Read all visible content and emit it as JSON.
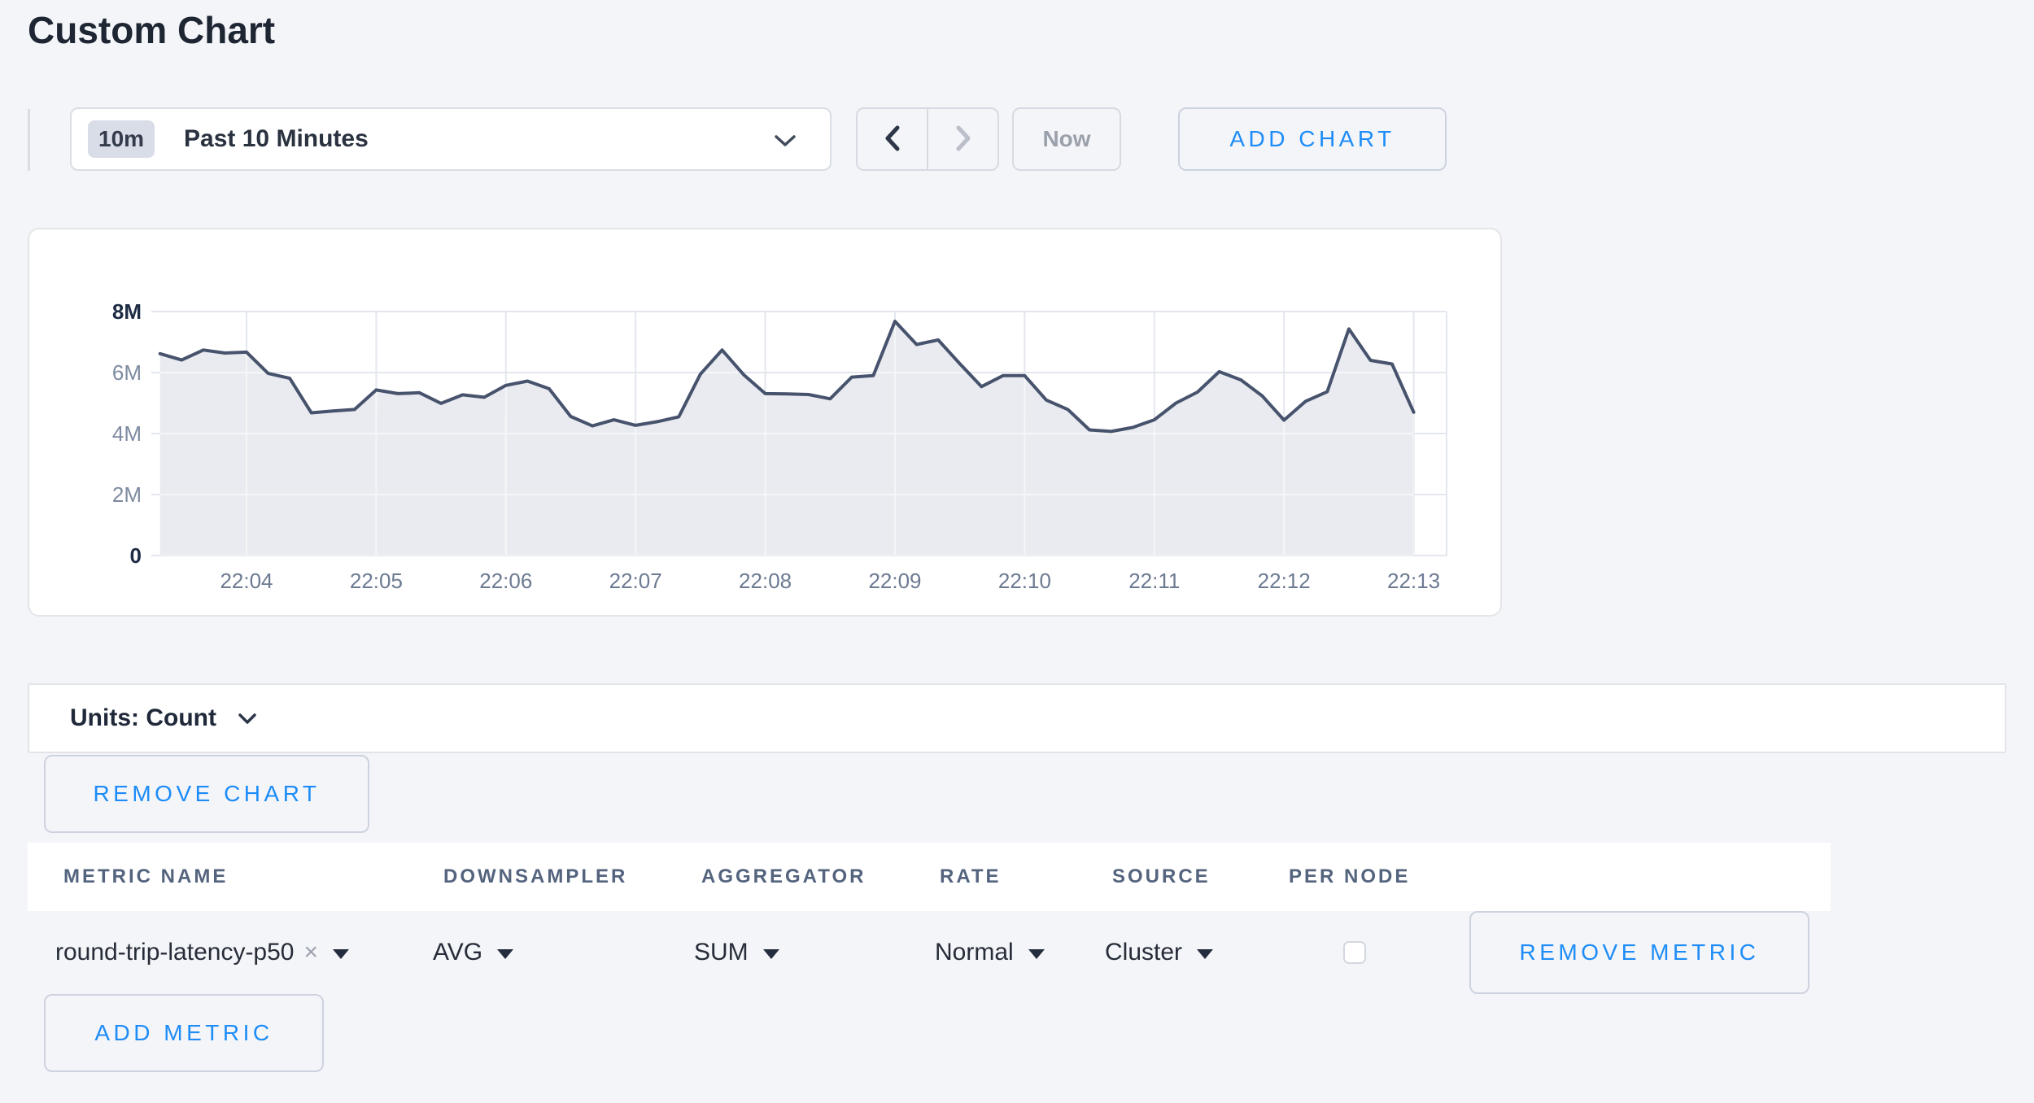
{
  "page": {
    "title": "Custom Chart",
    "background": "#f4f5f8",
    "accent_blue": "#1d8cf8"
  },
  "toolbar": {
    "time_window_badge": "10m",
    "time_window_label": "Past 10 Minutes",
    "now_label": "Now",
    "add_chart_label": "ADD CHART"
  },
  "icons": {
    "time_dropdown": "chevron-down-icon",
    "time_back": "chevron-left-icon",
    "time_forward": "chevron-right-icon",
    "units_dropdown": "chevron-down-icon",
    "select_caret": "caret-down-icon",
    "clear_metric": "close-icon"
  },
  "units_bar": {
    "label": "Units: Count"
  },
  "actions": {
    "remove_chart": "REMOVE CHART",
    "add_metric": "ADD METRIC"
  },
  "chart_data": {
    "type": "area",
    "title": "",
    "legend": "none",
    "grid": true,
    "line_color": "#47536d",
    "fill_color": "#e9ebf0",
    "grid_color": "#e4e7ee",
    "ylim": [
      0,
      8000000
    ],
    "yticks": [
      {
        "value": 0,
        "label": "0",
        "emphasis": true
      },
      {
        "value": 2000000,
        "label": "2M",
        "emphasis": false
      },
      {
        "value": 4000000,
        "label": "4M",
        "emphasis": false
      },
      {
        "value": 6000000,
        "label": "6M",
        "emphasis": false
      },
      {
        "value": 8000000,
        "label": "8M",
        "emphasis": true
      }
    ],
    "xticks": [
      {
        "time": "22:04:00",
        "label": "22:04"
      },
      {
        "time": "22:05:00",
        "label": "22:05"
      },
      {
        "time": "22:06:00",
        "label": "22:06"
      },
      {
        "time": "22:07:00",
        "label": "22:07"
      },
      {
        "time": "22:08:00",
        "label": "22:08"
      },
      {
        "time": "22:09:00",
        "label": "22:09"
      },
      {
        "time": "22:10:00",
        "label": "22:10"
      },
      {
        "time": "22:11:00",
        "label": "22:11"
      },
      {
        "time": "22:12:00",
        "label": "22:12"
      },
      {
        "time": "22:13:00",
        "label": "22:13"
      }
    ],
    "x": [
      "22:03:20",
      "22:03:30",
      "22:03:40",
      "22:03:50",
      "22:04:00",
      "22:04:10",
      "22:04:20",
      "22:04:30",
      "22:04:40",
      "22:04:50",
      "22:05:00",
      "22:05:10",
      "22:05:20",
      "22:05:30",
      "22:05:40",
      "22:05:50",
      "22:06:00",
      "22:06:10",
      "22:06:20",
      "22:06:30",
      "22:06:40",
      "22:06:50",
      "22:07:00",
      "22:07:10",
      "22:07:20",
      "22:07:30",
      "22:07:40",
      "22:07:50",
      "22:08:00",
      "22:08:10",
      "22:08:20",
      "22:08:30",
      "22:08:40",
      "22:08:50",
      "22:09:00",
      "22:09:10",
      "22:09:20",
      "22:09:30",
      "22:09:40",
      "22:09:50",
      "22:10:00",
      "22:10:10",
      "22:10:20",
      "22:10:30",
      "22:10:40",
      "22:10:50",
      "22:11:00",
      "22:11:10",
      "22:11:20",
      "22:11:30",
      "22:11:40",
      "22:11:50",
      "22:12:00",
      "22:12:10",
      "22:12:20",
      "22:12:30",
      "22:12:40",
      "22:12:50",
      "22:13:00"
    ],
    "values": [
      6620000,
      6410000,
      6740000,
      6640000,
      6670000,
      5970000,
      5810000,
      4680000,
      4740000,
      4790000,
      5430000,
      5310000,
      5340000,
      4990000,
      5270000,
      5190000,
      5580000,
      5720000,
      5470000,
      4560000,
      4250000,
      4450000,
      4270000,
      4390000,
      4550000,
      5950000,
      6740000,
      5930000,
      5310000,
      5300000,
      5280000,
      5140000,
      5850000,
      5900000,
      7680000,
      6920000,
      7070000,
      6290000,
      5540000,
      5900000,
      5900000,
      5100000,
      4790000,
      4120000,
      4070000,
      4200000,
      4450000,
      5000000,
      5360000,
      6030000,
      5760000,
      5230000,
      4440000,
      5060000,
      5370000,
      7430000,
      6400000,
      6280000,
      4700000
    ]
  },
  "metrics_table": {
    "columns": [
      "METRIC NAME",
      "DOWNSAMPLER",
      "AGGREGATOR",
      "RATE",
      "SOURCE",
      "PER NODE"
    ],
    "rows": [
      {
        "metric_name": "round-trip-latency-p50",
        "clear_icon": "×",
        "downsampler": "AVG",
        "aggregator": "SUM",
        "rate": "Normal",
        "source": "Cluster",
        "per_node_checked": false,
        "remove_label": "REMOVE METRIC"
      }
    ],
    "add_metric_label": "ADD METRIC"
  }
}
